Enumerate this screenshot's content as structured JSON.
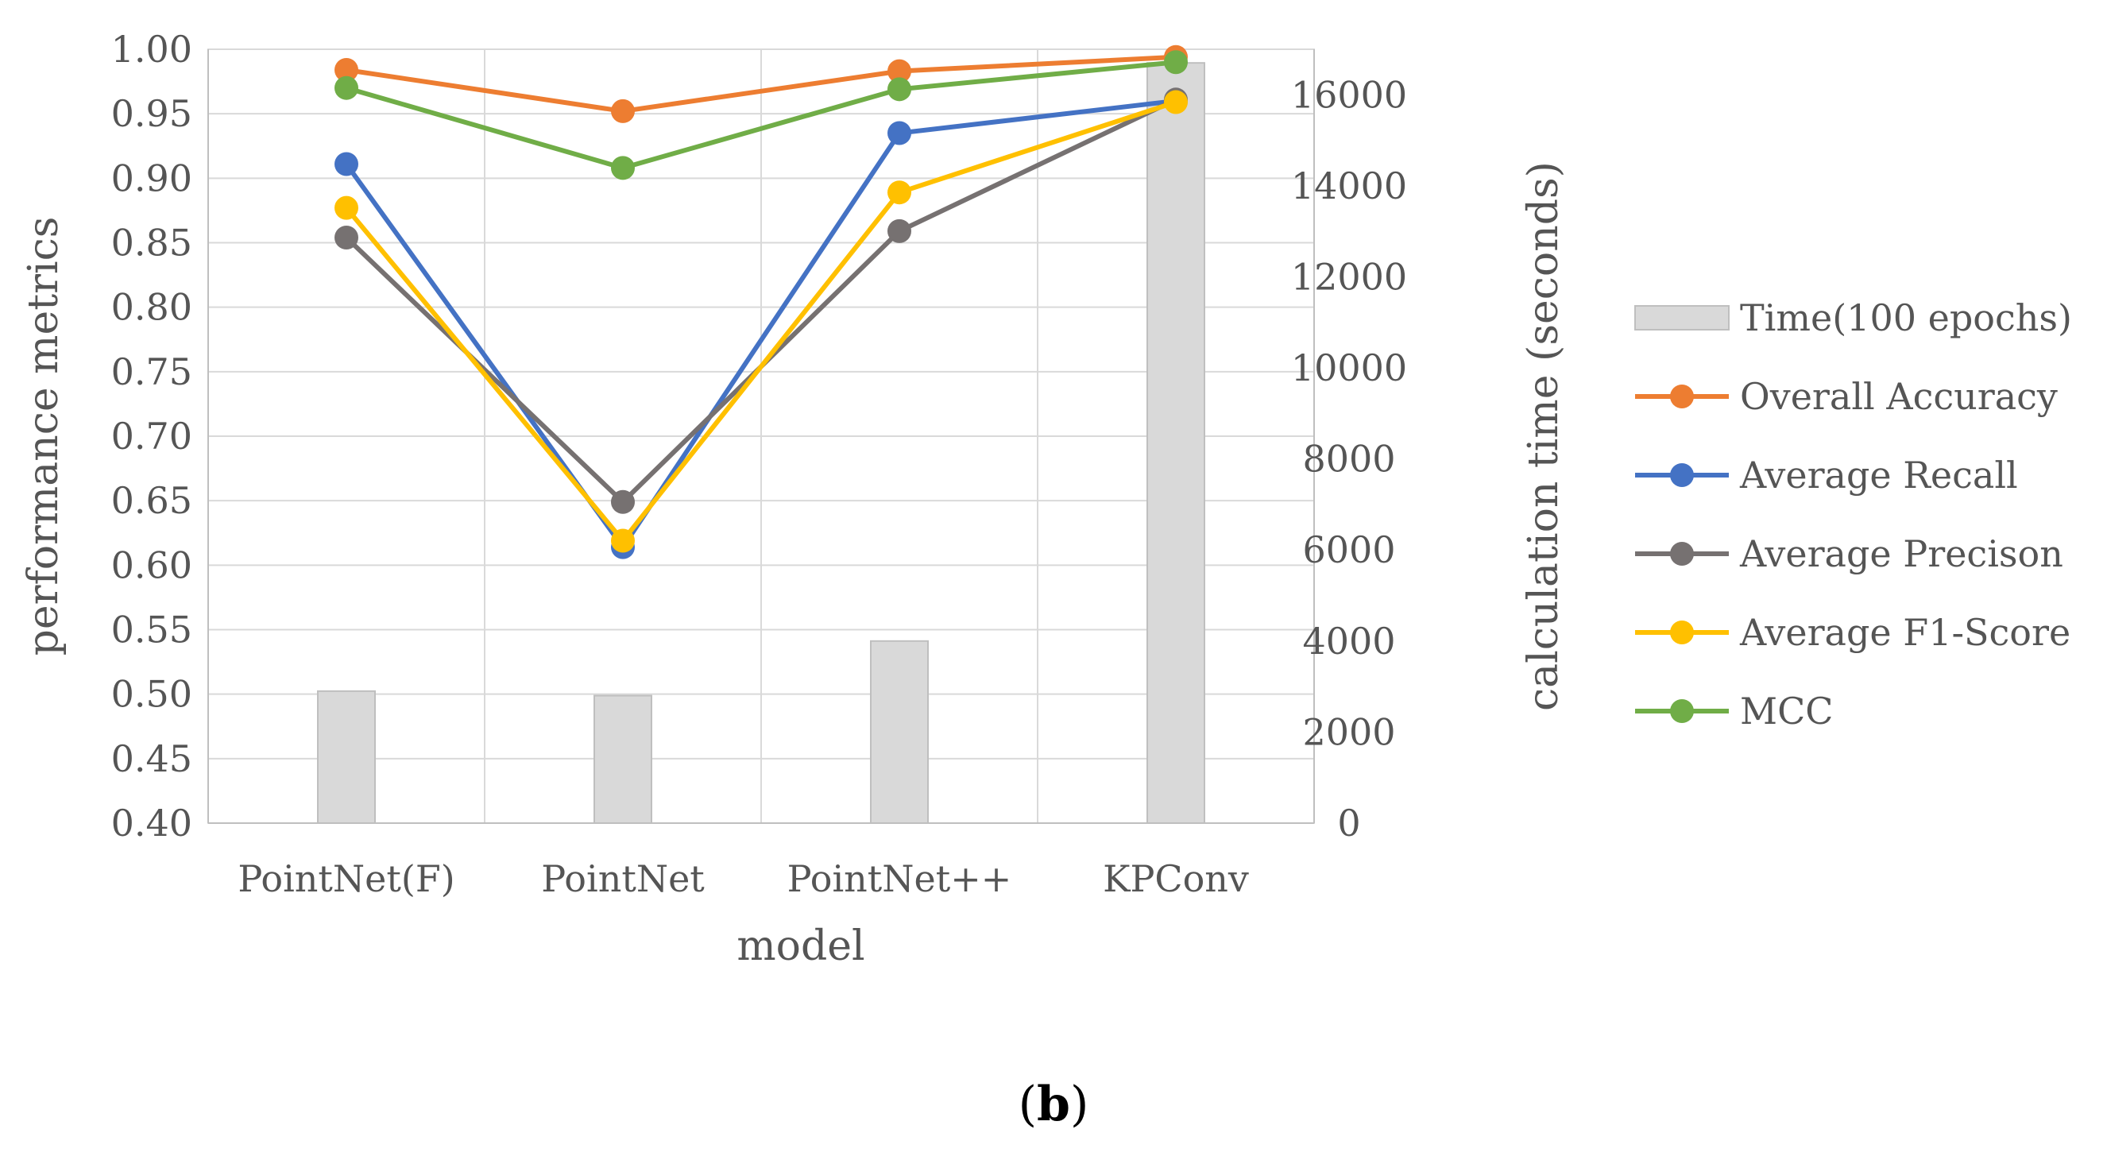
{
  "chart_data": {
    "type": "bar+line",
    "categories": [
      "PointNet(F)",
      "PointNet",
      "PointNet++",
      "KPConv"
    ],
    "xlabel": "model",
    "ylabel_left": "performance metrics",
    "ylabel_right": "calculation time (seconds)",
    "ylim_left": [
      0.4,
      1.0
    ],
    "ylim_right": [
      0,
      17000
    ],
    "left_ticks": [
      "0.40",
      "0.45",
      "0.50",
      "0.55",
      "0.60",
      "0.65",
      "0.70",
      "0.75",
      "0.80",
      "0.85",
      "0.90",
      "0.95",
      "1.00"
    ],
    "right_ticks": [
      "0",
      "2000",
      "4000",
      "6000",
      "8000",
      "10000",
      "12000",
      "14000",
      "16000"
    ],
    "bar_series": {
      "name": "Time(100 epochs)",
      "axis": "right",
      "color": "#d9d9d9",
      "values": [
        2900,
        2800,
        4000,
        16700
      ]
    },
    "series": [
      {
        "name": "Overall Accuracy",
        "color": "#ed7d31",
        "values": [
          0.984,
          0.952,
          0.983,
          0.994
        ]
      },
      {
        "name": "Average Recall",
        "color": "#4472c4",
        "values": [
          0.911,
          0.614,
          0.935,
          0.96
        ]
      },
      {
        "name": "Average Precison",
        "color": "#767171",
        "values": [
          0.854,
          0.649,
          0.859,
          0.961
        ]
      },
      {
        "name": "Average F1-Score",
        "color": "#ffc000",
        "values": [
          0.877,
          0.619,
          0.889,
          0.959
        ]
      },
      {
        "name": "MCC",
        "color": "#70ad47",
        "values": [
          0.97,
          0.908,
          0.969,
          0.99
        ]
      }
    ],
    "legend_position": "right",
    "grid": true
  },
  "caption": {
    "open": "(",
    "letter": "b",
    "close": ")"
  }
}
